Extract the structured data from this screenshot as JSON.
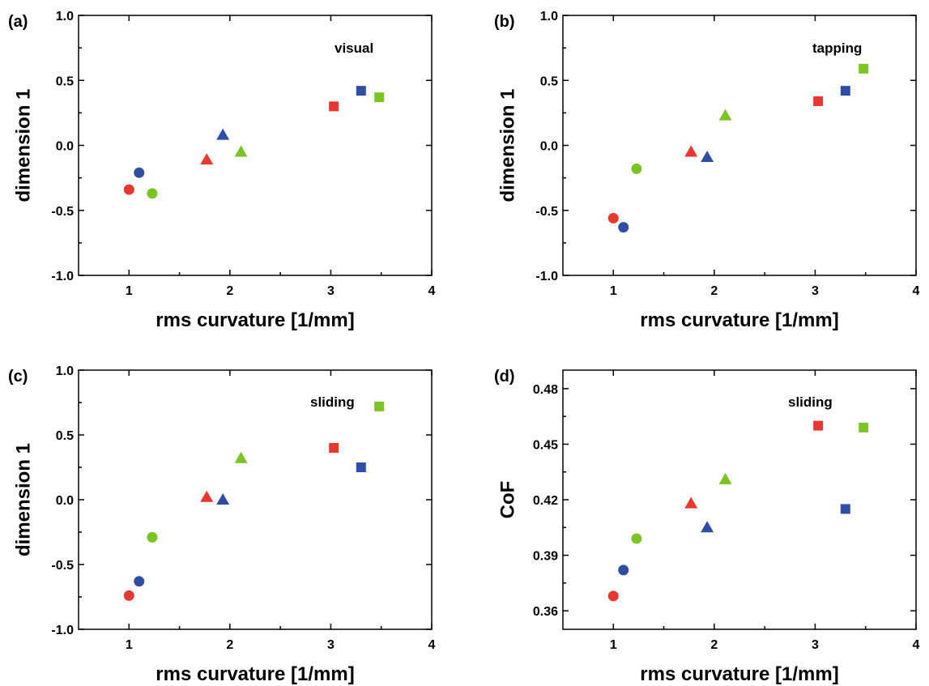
{
  "colors": {
    "red": "#e8372f",
    "green": "#7ac524",
    "blue": "#2f4ea3"
  },
  "chart_data": [
    {
      "type": "scatter",
      "panel": "(a)",
      "annotation": "visual",
      "xlabel": "rms curvature [1/mm]",
      "ylabel": "dimension 1",
      "xlim": [
        0.5,
        4
      ],
      "ylim": [
        -1.0,
        1.0
      ],
      "xticks": [
        1,
        2,
        3,
        4
      ],
      "xtick_labels": [
        "1",
        "2",
        "3",
        "4"
      ],
      "yticks": [
        -1.0,
        -0.5,
        0.0,
        0.5,
        1.0
      ],
      "ytick_labels": [
        "-1.0",
        "-0.5",
        "0.0",
        "0.5",
        "1.0"
      ],
      "points": [
        {
          "x": 1.0,
          "y": -0.34,
          "shape": "circle",
          "color": "red"
        },
        {
          "x": 1.1,
          "y": -0.21,
          "shape": "circle",
          "color": "blue"
        },
        {
          "x": 1.23,
          "y": -0.37,
          "shape": "circle",
          "color": "green"
        },
        {
          "x": 1.77,
          "y": -0.11,
          "shape": "triangle",
          "color": "red"
        },
        {
          "x": 1.93,
          "y": 0.08,
          "shape": "triangle",
          "color": "blue"
        },
        {
          "x": 2.11,
          "y": -0.05,
          "shape": "triangle",
          "color": "green"
        },
        {
          "x": 3.03,
          "y": 0.3,
          "shape": "square",
          "color": "red"
        },
        {
          "x": 3.3,
          "y": 0.42,
          "shape": "square",
          "color": "blue"
        },
        {
          "x": 3.48,
          "y": 0.37,
          "shape": "square",
          "color": "green"
        }
      ]
    },
    {
      "type": "scatter",
      "panel": "(b)",
      "annotation": "tapping",
      "xlabel": "rms curvature [1/mm]",
      "ylabel": "dimension 1",
      "xlim": [
        0.5,
        4
      ],
      "ylim": [
        -1.0,
        1.0
      ],
      "xticks": [
        1,
        2,
        3,
        4
      ],
      "xtick_labels": [
        "1",
        "2",
        "3",
        "4"
      ],
      "yticks": [
        -1.0,
        -0.5,
        0.0,
        0.5,
        1.0
      ],
      "ytick_labels": [
        "-1.0",
        "-0.5",
        "0.0",
        "0.5",
        "1.0"
      ],
      "points": [
        {
          "x": 1.0,
          "y": -0.56,
          "shape": "circle",
          "color": "red"
        },
        {
          "x": 1.1,
          "y": -0.63,
          "shape": "circle",
          "color": "blue"
        },
        {
          "x": 1.23,
          "y": -0.18,
          "shape": "circle",
          "color": "green"
        },
        {
          "x": 1.77,
          "y": -0.05,
          "shape": "triangle",
          "color": "red"
        },
        {
          "x": 1.93,
          "y": -0.09,
          "shape": "triangle",
          "color": "blue"
        },
        {
          "x": 2.11,
          "y": 0.23,
          "shape": "triangle",
          "color": "green"
        },
        {
          "x": 3.03,
          "y": 0.34,
          "shape": "square",
          "color": "red"
        },
        {
          "x": 3.3,
          "y": 0.42,
          "shape": "square",
          "color": "blue"
        },
        {
          "x": 3.48,
          "y": 0.59,
          "shape": "square",
          "color": "green"
        }
      ]
    },
    {
      "type": "scatter",
      "panel": "(c)",
      "annotation": "sliding",
      "xlabel": "rms curvature [1/mm]",
      "ylabel": "dimension 1",
      "xlim": [
        0.5,
        4
      ],
      "ylim": [
        -1.0,
        1.0
      ],
      "xticks": [
        1,
        2,
        3,
        4
      ],
      "xtick_labels": [
        "1",
        "2",
        "3",
        "4"
      ],
      "yticks": [
        -1.0,
        -0.5,
        0.0,
        0.5,
        1.0
      ],
      "ytick_labels": [
        "-1.0",
        "-0.5",
        "0.0",
        "0.5",
        "1.0"
      ],
      "points": [
        {
          "x": 1.0,
          "y": -0.74,
          "shape": "circle",
          "color": "red"
        },
        {
          "x": 1.1,
          "y": -0.63,
          "shape": "circle",
          "color": "blue"
        },
        {
          "x": 1.23,
          "y": -0.29,
          "shape": "circle",
          "color": "green"
        },
        {
          "x": 1.77,
          "y": 0.02,
          "shape": "triangle",
          "color": "red"
        },
        {
          "x": 1.93,
          "y": 0.0,
          "shape": "triangle",
          "color": "blue"
        },
        {
          "x": 2.11,
          "y": 0.32,
          "shape": "triangle",
          "color": "green"
        },
        {
          "x": 3.03,
          "y": 0.4,
          "shape": "square",
          "color": "red"
        },
        {
          "x": 3.3,
          "y": 0.25,
          "shape": "square",
          "color": "blue"
        },
        {
          "x": 3.48,
          "y": 0.72,
          "shape": "square",
          "color": "green"
        }
      ]
    },
    {
      "type": "scatter",
      "panel": "(d)",
      "annotation": "sliding",
      "xlabel": "rms curvature [1/mm]",
      "ylabel": "CoF",
      "xlim": [
        0.5,
        4
      ],
      "ylim": [
        0.35,
        0.49
      ],
      "xticks": [
        1,
        2,
        3,
        4
      ],
      "xtick_labels": [
        "1",
        "2",
        "3",
        "4"
      ],
      "yticks": [
        0.36,
        0.39,
        0.42,
        0.45,
        0.48
      ],
      "ytick_labels": [
        "0.36",
        "0.39",
        "0.42",
        "0.45",
        "0.48"
      ],
      "points": [
        {
          "x": 1.0,
          "y": 0.368,
          "shape": "circle",
          "color": "red"
        },
        {
          "x": 1.1,
          "y": 0.382,
          "shape": "circle",
          "color": "blue"
        },
        {
          "x": 1.23,
          "y": 0.399,
          "shape": "circle",
          "color": "green"
        },
        {
          "x": 1.77,
          "y": 0.418,
          "shape": "triangle",
          "color": "red"
        },
        {
          "x": 1.93,
          "y": 0.405,
          "shape": "triangle",
          "color": "blue"
        },
        {
          "x": 2.11,
          "y": 0.431,
          "shape": "triangle",
          "color": "green"
        },
        {
          "x": 3.03,
          "y": 0.46,
          "shape": "square",
          "color": "red"
        },
        {
          "x": 3.3,
          "y": 0.415,
          "shape": "square",
          "color": "blue"
        },
        {
          "x": 3.48,
          "y": 0.459,
          "shape": "square",
          "color": "green"
        }
      ]
    }
  ]
}
